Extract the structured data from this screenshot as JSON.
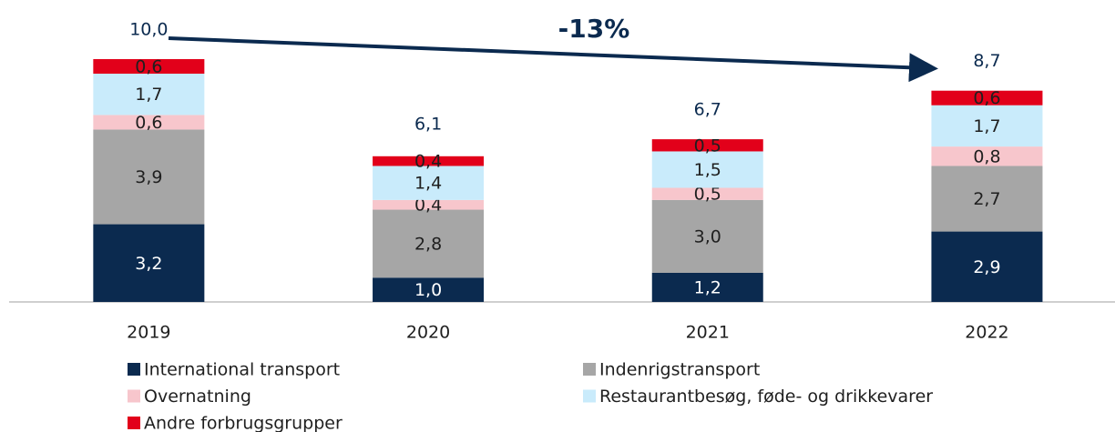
{
  "chart_data": {
    "type": "stacked_bar",
    "annotation": "-13%",
    "categories": [
      "2019",
      "2020",
      "2021",
      "2022"
    ],
    "series": [
      {
        "name": "International transport",
        "color": "#0b2a4f",
        "values": [
          3.2,
          1.0,
          1.2,
          2.9
        ],
        "value_labels": [
          "3,2",
          "1,0",
          "1,2",
          "2,9"
        ]
      },
      {
        "name": "Indenrigstransport",
        "color": "#a6a6a6",
        "values": [
          3.9,
          2.8,
          3.0,
          2.7
        ],
        "value_labels": [
          "3,9",
          "2,8",
          "3,0",
          "2,7"
        ]
      },
      {
        "name": "Overnatning",
        "color": "#f7c6cc",
        "values": [
          0.6,
          0.4,
          0.5,
          0.8
        ],
        "value_labels": [
          "0,6",
          "0,4",
          "0,5",
          "0,8"
        ]
      },
      {
        "name": "Restaurantbesøg, føde- og drikkevarer",
        "color": "#c9ebfb",
        "values": [
          1.7,
          1.4,
          1.5,
          1.7
        ],
        "value_labels": [
          "1,7",
          "1,4",
          "1,5",
          "1,7"
        ]
      },
      {
        "name": "Andre forbrugsgrupper",
        "color": "#e2001a",
        "values": [
          0.6,
          0.4,
          0.5,
          0.6
        ],
        "value_labels": [
          "0,6",
          "0,4",
          "0,5",
          "0,6"
        ]
      }
    ],
    "totals": [
      10.0,
      6.1,
      6.7,
      8.7
    ],
    "total_labels": [
      "10,0",
      "6,1",
      "6,7",
      "8,7"
    ],
    "ylim": [
      0,
      10
    ]
  }
}
